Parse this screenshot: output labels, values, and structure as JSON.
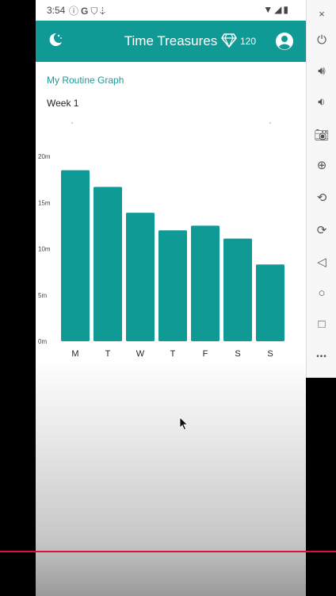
{
  "status_bar": {
    "time": "3:54",
    "left_icons": [
      "info-icon",
      "google-icon",
      "shield-icon",
      "download-icon"
    ],
    "right_icons": [
      "wifi-icon",
      "signal-icon",
      "battery-icon"
    ]
  },
  "app_bar": {
    "title": "Time Treasures",
    "gem_count": "120",
    "icons": [
      "moon-icon",
      "diamond-icon",
      "account-icon"
    ]
  },
  "graph_title": "My Routine Graph",
  "week_label": "Week 1",
  "chart_data": {
    "type": "bar",
    "categories": [
      "M",
      "T",
      "W",
      "T",
      "F",
      "S",
      "S"
    ],
    "values": [
      18.5,
      16.7,
      13.9,
      12.0,
      12.5,
      11.1,
      8.3
    ],
    "yticks": [
      "0m",
      "5m",
      "10m",
      "15m",
      "20m"
    ],
    "ylim": [
      0,
      20
    ],
    "bar_color": "#0f9a96",
    "grid": false,
    "legend": false
  },
  "emulator_panel": {
    "close_label": "×",
    "more_label": "•••",
    "buttons": [
      "power-icon",
      "volume-up-icon",
      "volume-down-icon",
      "camera-icon",
      "zoom-icon",
      "rotate-left-icon",
      "rotate-right-icon",
      "back-icon",
      "home-icon",
      "overview-icon"
    ]
  },
  "colors": {
    "accent": "#0f9a96",
    "marker_line": "#e0103c"
  }
}
